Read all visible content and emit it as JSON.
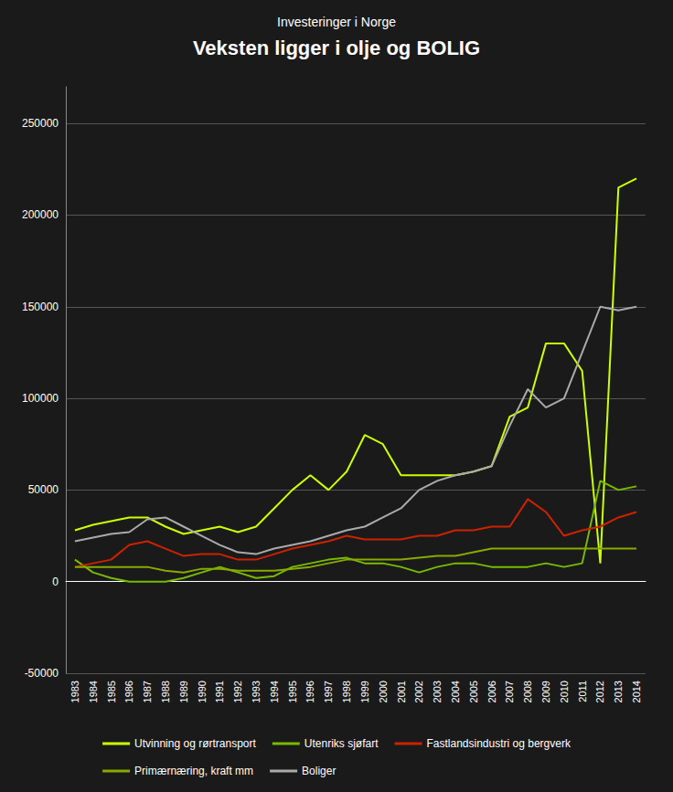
{
  "chart_data": {
    "type": "line",
    "title": "Veksten ligger i olje og BOLIG",
    "subtitle": "Investeringer i Norge",
    "categories": [
      "1983",
      "1984",
      "1985",
      "1986",
      "1987",
      "1988",
      "1989",
      "1990",
      "1991",
      "1992",
      "1993",
      "1994",
      "1995",
      "1996",
      "1997",
      "1998",
      "1999",
      "2000",
      "2001",
      "2002",
      "2003",
      "2004",
      "2005",
      "2006",
      "2007",
      "2008",
      "2009",
      "2010",
      "2011",
      "2012",
      "2013",
      "2014"
    ],
    "series": [
      {
        "name": "Utvinning og rørtransport",
        "color": "#ccff00",
        "values": [
          28000,
          31000,
          33000,
          35000,
          35000,
          30000,
          26000,
          28000,
          30000,
          27000,
          30000,
          40000,
          50000,
          58000,
          50000,
          60000,
          80000,
          75000,
          58000,
          58000,
          58000,
          58000,
          60000,
          63000,
          90000,
          95000,
          130000,
          130000,
          115000,
          10000,
          215000,
          220000
        ]
      },
      {
        "name": "Utenriks sjøfart",
        "color": "#77bb00",
        "values": [
          12000,
          5000,
          2000,
          0,
          0,
          0,
          2000,
          5000,
          8000,
          5000,
          2000,
          3000,
          8000,
          10000,
          12000,
          13000,
          10000,
          10000,
          8000,
          5000,
          8000,
          10000,
          10000,
          8000,
          8000,
          8000,
          10000,
          8000,
          10000,
          55000,
          50000,
          52000
        ]
      },
      {
        "name": "Fastlandsindustri og bergverk",
        "color": "#cc2200",
        "values": [
          8000,
          10000,
          12000,
          20000,
          22000,
          18000,
          14000,
          15000,
          15000,
          12000,
          12000,
          15000,
          18000,
          20000,
          22000,
          25000,
          23000,
          23000,
          23000,
          25000,
          25000,
          28000,
          28000,
          30000,
          30000,
          45000,
          38000,
          25000,
          28000,
          30000,
          35000,
          38000
        ]
      },
      {
        "name": "Primærnæring, kraft mm",
        "color": "#88aa00",
        "values": [
          8000,
          8000,
          8000,
          8000,
          8000,
          6000,
          5000,
          7000,
          7000,
          6000,
          6000,
          6000,
          7000,
          8000,
          10000,
          12000,
          12000,
          12000,
          12000,
          13000,
          14000,
          14000,
          16000,
          18000,
          18000,
          18000,
          18000,
          18000,
          18000,
          18000,
          18000,
          18000
        ]
      },
      {
        "name": "Boliger",
        "color": "#aaaaaa",
        "values": [
          22000,
          24000,
          26000,
          27000,
          34000,
          35000,
          30000,
          25000,
          20000,
          16000,
          15000,
          18000,
          20000,
          22000,
          25000,
          28000,
          30000,
          35000,
          40000,
          50000,
          55000,
          58000,
          60000,
          63000,
          85000,
          105000,
          95000,
          100000,
          125000,
          150000,
          148000,
          150000
        ]
      }
    ],
    "ylim": [
      -50000,
      270000
    ],
    "yticks": [
      -50000,
      0,
      50000,
      100000,
      150000,
      200000,
      250000
    ],
    "grid": true,
    "legend": "bottom"
  }
}
